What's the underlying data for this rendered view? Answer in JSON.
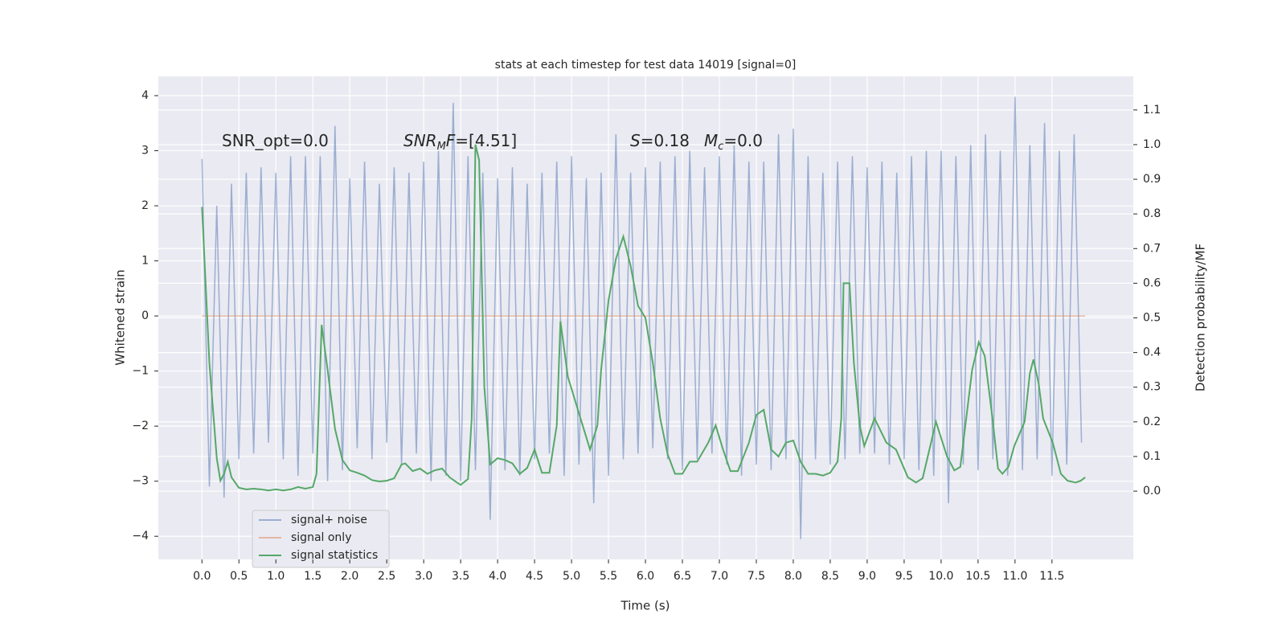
{
  "chart_data": {
    "type": "line",
    "title": "stats at each timestep for test data 14019 [signal=0]",
    "xlabel": "Time (s)",
    "ylabel": "Whitened strain",
    "y2label": "Detection probability/MF",
    "annotations": [
      {
        "parts": [
          "SNR_opt=0.0"
        ]
      },
      {
        "parts": [
          "SNR",
          "M",
          "F",
          "=[4.51]"
        ]
      },
      {
        "parts": [
          "S",
          "=0.18",
          "M",
          "c",
          "=0.0"
        ]
      }
    ],
    "xlim": [
      -0.59,
      12.6
    ],
    "ylim": [
      -4.42,
      4.35
    ],
    "y2lim": [
      -0.197,
      1.197
    ],
    "xticks": [
      {
        "value": 0,
        "label": "0.0"
      },
      {
        "value": 0.5,
        "label": "0.5"
      },
      {
        "value": 1,
        "label": "1.0"
      },
      {
        "value": 1.5,
        "label": "1.5"
      },
      {
        "value": 2,
        "label": "2.0"
      },
      {
        "value": 2.5,
        "label": "2.5"
      },
      {
        "value": 3,
        "label": "3.0"
      },
      {
        "value": 3.5,
        "label": "3.5"
      },
      {
        "value": 4,
        "label": "4.0"
      },
      {
        "value": 4.5,
        "label": "4.5"
      },
      {
        "value": 5,
        "label": "5.0"
      },
      {
        "value": 5.5,
        "label": "5.5"
      },
      {
        "value": 6,
        "label": "6.0"
      },
      {
        "value": 6.5,
        "label": "6.5"
      },
      {
        "value": 7,
        "label": "7.0"
      },
      {
        "value": 7.5,
        "label": "7.5"
      },
      {
        "value": 8,
        "label": "8.0"
      },
      {
        "value": 8.5,
        "label": "8.5"
      },
      {
        "value": 9,
        "label": "9.0"
      },
      {
        "value": 9.5,
        "label": "9.5"
      },
      {
        "value": 10,
        "label": "10.0"
      },
      {
        "value": 10.5,
        "label": "10.5"
      },
      {
        "value": 11,
        "label": "11.0"
      },
      {
        "value": 11.5,
        "label": "11.5"
      }
    ],
    "yticks": [
      {
        "value": -4,
        "label": "−4"
      },
      {
        "value": -3,
        "label": "−3"
      },
      {
        "value": -2,
        "label": "−2"
      },
      {
        "value": -1,
        "label": "−1"
      },
      0,
      1,
      2,
      3,
      4
    ],
    "y2ticks": [
      {
        "value": 0,
        "label": "0.0"
      },
      0.1,
      0.2,
      0.3,
      0.4,
      0.5,
      0.6,
      0.7,
      0.8,
      0.9,
      {
        "value": 1,
        "label": "1.0"
      },
      1.1
    ],
    "grid": true,
    "background": "#eaeaf2",
    "legend": "lower left",
    "series": [
      {
        "name": "signal+ noise",
        "color": "#4c72b0",
        "opacity": 0.5,
        "x": [
          0,
          0.1,
          0.2,
          0.3,
          0.4,
          0.5,
          0.6,
          0.7,
          0.8,
          0.9,
          1,
          1.1,
          1.2,
          1.3,
          1.4,
          1.5,
          1.6,
          1.7,
          1.8,
          1.9,
          2,
          2.1,
          2.2,
          2.3,
          2.4,
          2.5,
          2.6,
          2.7,
          2.8,
          2.9,
          3,
          3.1,
          3.2,
          3.3,
          3.4,
          3.5,
          3.6,
          3.7,
          3.8,
          3.9,
          4,
          4.1,
          4.2,
          4.3,
          4.4,
          4.5,
          4.6,
          4.7,
          4.8,
          4.9,
          5,
          5.1,
          5.2,
          5.3,
          5.4,
          5.5,
          5.6,
          5.7,
          5.8,
          5.9,
          6,
          6.1,
          6.2,
          6.3,
          6.4,
          6.5,
          6.6,
          6.7,
          6.8,
          6.9,
          7,
          7.1,
          7.2,
          7.3,
          7.4,
          7.5,
          7.6,
          7.7,
          7.8,
          7.9,
          8,
          8.1,
          8.2,
          8.3,
          8.4,
          8.5,
          8.6,
          8.7,
          8.8,
          8.9,
          9,
          9.1,
          9.2,
          9.3,
          9.4,
          9.5,
          9.6,
          9.7,
          9.8,
          9.9,
          10,
          10.1,
          10.2,
          10.3,
          10.4,
          10.5,
          10.6,
          10.7,
          10.8,
          10.9,
          11,
          11.1,
          11.2,
          11.3,
          11.4,
          11.5,
          11.6,
          11.7,
          11.8,
          11.9
        ],
        "values": [
          2.85,
          -3.1,
          2.0,
          -3.3,
          2.4,
          -2.6,
          2.6,
          -2.5,
          2.7,
          -2.3,
          2.6,
          -2.6,
          2.9,
          -2.9,
          2.9,
          -2.5,
          2.9,
          -3.0,
          3.45,
          -2.8,
          2.5,
          -2.4,
          2.8,
          -2.6,
          2.4,
          -2.3,
          2.7,
          -2.7,
          2.6,
          -2.5,
          2.8,
          -3.0,
          3.0,
          -2.9,
          3.87,
          -3.0,
          2.9,
          -2.8,
          2.6,
          -3.7,
          2.5,
          -2.8,
          2.7,
          -2.9,
          2.4,
          -2.6,
          2.6,
          -2.5,
          2.8,
          -2.9,
          2.9,
          -2.7,
          2.5,
          -3.4,
          2.6,
          -2.9,
          3.3,
          -2.6,
          2.6,
          -2.5,
          2.7,
          -2.4,
          2.8,
          -2.6,
          2.9,
          -2.8,
          3.0,
          -2.6,
          2.7,
          -2.5,
          2.9,
          -2.7,
          3.1,
          -2.9,
          2.8,
          -2.7,
          2.8,
          -2.8,
          3.3,
          -2.6,
          3.4,
          -4.05,
          2.9,
          -2.6,
          2.6,
          -2.7,
          2.8,
          -2.6,
          2.9,
          -2.5,
          2.7,
          -2.5,
          2.8,
          -2.7,
          2.6,
          -2.6,
          2.9,
          -2.8,
          3.0,
          -2.9,
          3.0,
          -3.4,
          2.9,
          -2.7,
          3.1,
          -2.8,
          3.3,
          -2.6,
          3.0,
          -2.9,
          3.98,
          -2.8,
          3.1,
          -2.6,
          3.5,
          -2.9,
          3.0,
          -2.7,
          3.3,
          -2.3
        ]
      },
      {
        "name": "signal only",
        "color": "#dd8452",
        "opacity": 0.5,
        "x": [
          0,
          11.95
        ],
        "values": [
          0,
          0
        ]
      },
      {
        "name": "signal statistics",
        "color": "#55a868",
        "opacity": 1,
        "axis": "y2",
        "x": [
          0,
          0.1,
          0.2,
          0.25,
          0.3,
          0.35,
          0.4,
          0.5,
          0.6,
          0.7,
          0.8,
          0.9,
          1,
          1.1,
          1.2,
          1.3,
          1.4,
          1.5,
          1.55,
          1.62,
          1.7,
          1.8,
          1.9,
          2,
          2.1,
          2.2,
          2.3,
          2.4,
          2.5,
          2.6,
          2.7,
          2.75,
          2.85,
          2.95,
          3.05,
          3.15,
          3.25,
          3.35,
          3.45,
          3.5,
          3.6,
          3.65,
          3.7,
          3.75,
          3.82,
          3.9,
          4,
          4.1,
          4.2,
          4.3,
          4.4,
          4.5,
          4.6,
          4.7,
          4.8,
          4.85,
          4.95,
          5.05,
          5.15,
          5.25,
          5.35,
          5.4,
          5.5,
          5.6,
          5.7,
          5.8,
          5.9,
          6,
          6.1,
          6.2,
          6.3,
          6.4,
          6.5,
          6.6,
          6.7,
          6.85,
          6.95,
          7.05,
          7.15,
          7.25,
          7.4,
          7.5,
          7.6,
          7.7,
          7.8,
          7.9,
          8,
          8.1,
          8.2,
          8.3,
          8.4,
          8.5,
          8.6,
          8.65,
          8.68,
          8.76,
          8.82,
          8.9,
          8.96,
          9.1,
          9.26,
          9.39,
          9.55,
          9.66,
          9.75,
          9.93,
          10.08,
          10.18,
          10.26,
          10.42,
          10.51,
          10.59,
          10.7,
          10.77,
          10.83,
          10.91,
          10.99,
          11.13,
          11.2,
          11.25,
          11.32,
          11.38,
          11.51,
          11.62,
          11.71,
          11.82,
          11.89,
          11.95
        ],
        "values": [
          0.82,
          0.37,
          0.095,
          0.03,
          0.05,
          0.085,
          0.04,
          0.01,
          0.005,
          0.007,
          0.005,
          0.002,
          0.005,
          0.002,
          0.005,
          0.012,
          0.007,
          0.012,
          0.05,
          0.48,
          0.35,
          0.18,
          0.09,
          0.06,
          0.053,
          0.045,
          0.032,
          0.028,
          0.03,
          0.037,
          0.077,
          0.08,
          0.058,
          0.065,
          0.05,
          0.06,
          0.065,
          0.04,
          0.025,
          0.018,
          0.035,
          0.21,
          1.0,
          0.955,
          0.3,
          0.077,
          0.095,
          0.09,
          0.08,
          0.05,
          0.067,
          0.12,
          0.053,
          0.053,
          0.19,
          0.49,
          0.33,
          0.26,
          0.19,
          0.12,
          0.19,
          0.35,
          0.55,
          0.67,
          0.735,
          0.65,
          0.535,
          0.5,
          0.37,
          0.21,
          0.107,
          0.05,
          0.05,
          0.085,
          0.085,
          0.14,
          0.19,
          0.12,
          0.058,
          0.058,
          0.14,
          0.22,
          0.235,
          0.12,
          0.1,
          0.14,
          0.146,
          0.085,
          0.05,
          0.05,
          0.045,
          0.053,
          0.085,
          0.21,
          0.6,
          0.6,
          0.37,
          0.19,
          0.13,
          0.21,
          0.14,
          0.12,
          0.04,
          0.025,
          0.037,
          0.2,
          0.1,
          0.06,
          0.07,
          0.35,
          0.43,
          0.39,
          0.2,
          0.065,
          0.05,
          0.07,
          0.13,
          0.2,
          0.34,
          0.38,
          0.31,
          0.21,
          0.14,
          0.05,
          0.03,
          0.025,
          0.03,
          0.04
        ]
      }
    ]
  }
}
